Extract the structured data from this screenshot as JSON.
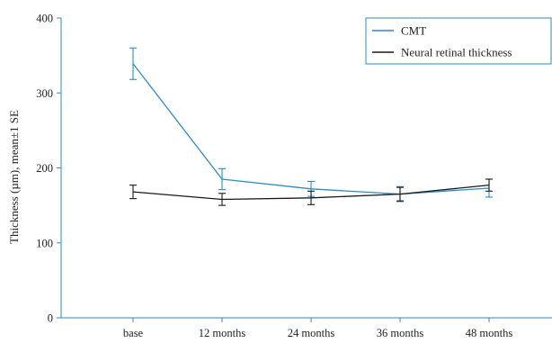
{
  "chart_data": {
    "type": "line",
    "title": "",
    "xlabel": "",
    "ylabel": "Thickness (µm), mean±1 SE",
    "ylim": [
      0,
      400
    ],
    "yticks": [
      0,
      100,
      200,
      300,
      400
    ],
    "categories": [
      "base",
      "12 months",
      "24 months",
      "36 months",
      "48 months"
    ],
    "grid": false,
    "legend_position": "top-right",
    "series": [
      {
        "name": "CMT",
        "color": "#2a8bc6",
        "values": [
          339,
          185,
          172,
          165,
          173
        ],
        "se": [
          21,
          14,
          10,
          10,
          12
        ]
      },
      {
        "name": "Neural retinal thickness",
        "color": "#1a1a1a",
        "values": [
          168,
          158,
          160,
          165,
          177
        ],
        "se": [
          9,
          8,
          9,
          9,
          8
        ]
      }
    ]
  }
}
